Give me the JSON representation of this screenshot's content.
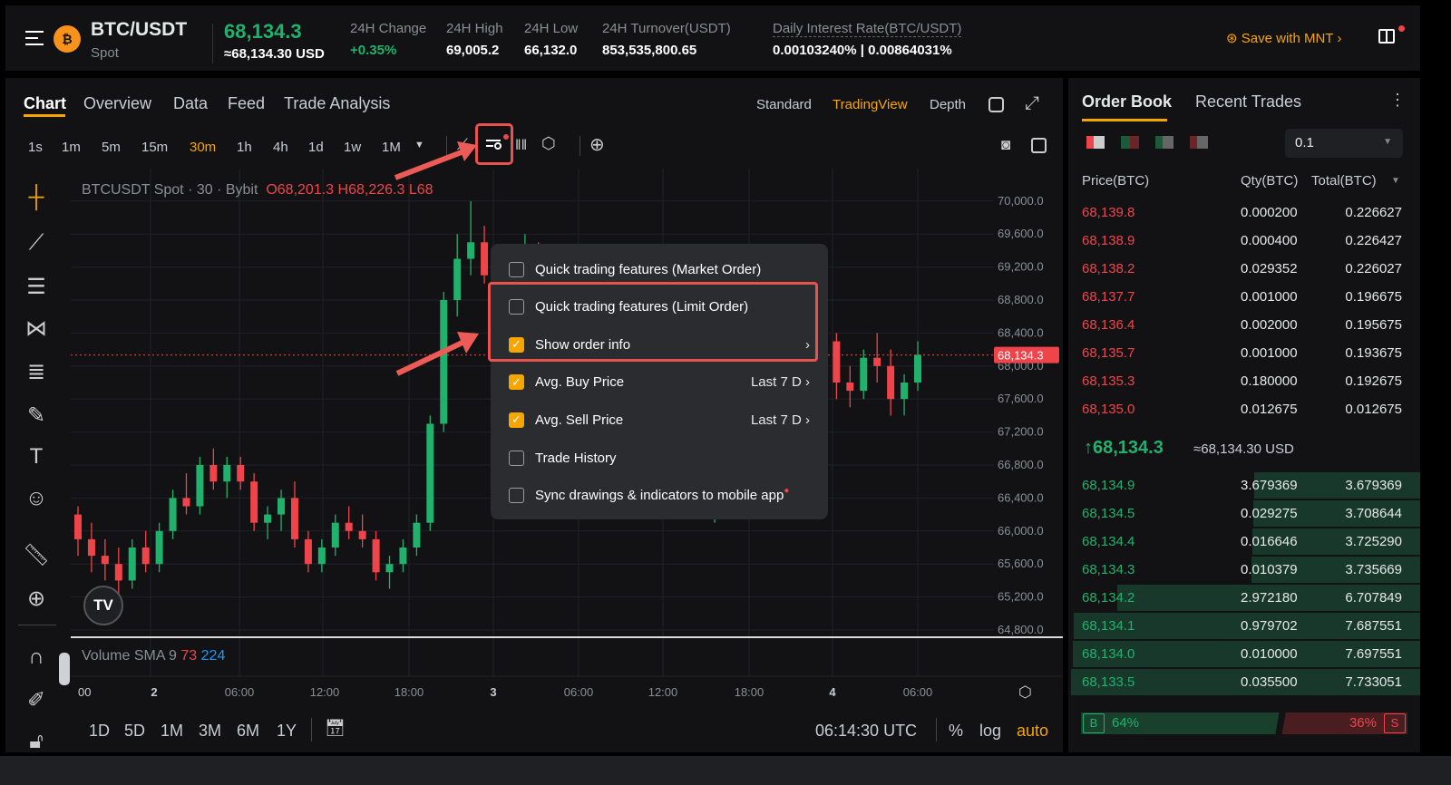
{
  "header": {
    "pair": "BTC/USDT",
    "market": "Spot",
    "last_price": "68,134.3",
    "usd_price": "≈68,134.30 USD",
    "stats": [
      {
        "label": "24H Change",
        "value": "+0.35%"
      },
      {
        "label": "24H High",
        "value": "69,005.2"
      },
      {
        "label": "24H Low",
        "value": "66,132.0"
      },
      {
        "label": "24H Turnover(USDT)",
        "value": "853,535,800.65"
      },
      {
        "label": "Daily Interest Rate(BTC/USDT)",
        "value": "0.00103240% | 0.00864031%"
      }
    ],
    "save_label": "Save with MNT"
  },
  "tabs": [
    "Chart",
    "Overview",
    "Data",
    "Feed",
    "Trade Analysis"
  ],
  "views": [
    "Standard",
    "TradingView",
    "Depth"
  ],
  "timeframes": [
    "1s",
    "1m",
    "5m",
    "15m",
    "30m",
    "1h",
    "4h",
    "1d",
    "1w",
    "1M"
  ],
  "active_timeframe": "30m",
  "legend": {
    "symbol": "BTCUSDT Spot · 30 · Bybit",
    "o": "O68,201.3",
    "h": "H68,226.3",
    "l": "L68"
  },
  "menu": [
    {
      "label": "Quick trading features (Market Order)",
      "checked": false,
      "right": ""
    },
    {
      "label": "Quick trading features (Limit Order)",
      "checked": false,
      "right": ""
    },
    {
      "label": "Show order info",
      "checked": true,
      "right": "›"
    },
    {
      "label": "Avg. Buy Price",
      "checked": true,
      "right": "Last 7 D ›"
    },
    {
      "label": "Avg. Sell Price",
      "checked": true,
      "right": "Last 7 D ›"
    },
    {
      "label": "Trade History",
      "checked": false,
      "right": ""
    },
    {
      "label": "Sync drawings & indicators to mobile app",
      "checked": false,
      "right": ""
    }
  ],
  "price_ticks": [
    "70,000.0",
    "69,600.0",
    "69,200.0",
    "68,800.0",
    "68,400.0",
    "68,000.0",
    "67,600.0",
    "67,200.0",
    "66,800.0",
    "66,400.0",
    "66,000.0",
    "65,600.0",
    "65,200.0",
    "64,800.0"
  ],
  "current_price_tag": "68,134.3",
  "time_ticks": [
    "00",
    "2",
    "06:00",
    "12:00",
    "18:00",
    "3",
    "06:00",
    "12:00",
    "18:00",
    "4",
    "06:00"
  ],
  "volume": {
    "label": "Volume SMA 9",
    "v1": "73",
    "v2": "224"
  },
  "ranges": [
    "1D",
    "5D",
    "1M",
    "3M",
    "6M",
    "1Y"
  ],
  "clock": "06:14:30 UTC",
  "scale_opts": [
    "%",
    "log",
    "auto"
  ],
  "chart_data": {
    "type": "candlestick",
    "ylim": [
      64800,
      70200
    ],
    "candles": [
      [
        66200,
        66300,
        65700,
        65900
      ],
      [
        65900,
        66100,
        65500,
        65700
      ],
      [
        65700,
        65900,
        65400,
        65600
      ],
      [
        65600,
        65800,
        65200,
        65400
      ],
      [
        65400,
        65900,
        65300,
        65800
      ],
      [
        65800,
        66000,
        65500,
        65600
      ],
      [
        65600,
        66100,
        65500,
        66000
      ],
      [
        66000,
        66500,
        65900,
        66400
      ],
      [
        66400,
        66700,
        66200,
        66300
      ],
      [
        66300,
        66900,
        66200,
        66800
      ],
      [
        66800,
        67000,
        66500,
        66600
      ],
      [
        66600,
        66900,
        66400,
        66800
      ],
      [
        66800,
        66900,
        66500,
        66600
      ],
      [
        66600,
        66700,
        66000,
        66100
      ],
      [
        66100,
        66300,
        65900,
        66200
      ],
      [
        66200,
        66500,
        66000,
        66400
      ],
      [
        66400,
        66600,
        65800,
        65900
      ],
      [
        65900,
        66000,
        65500,
        65600
      ],
      [
        65600,
        65900,
        65500,
        65800
      ],
      [
        65800,
        66200,
        65700,
        66100
      ],
      [
        66100,
        66300,
        65900,
        66000
      ],
      [
        66000,
        66200,
        65800,
        65900
      ],
      [
        65900,
        66000,
        65400,
        65500
      ],
      [
        65500,
        65700,
        65300,
        65600
      ],
      [
        65600,
        65900,
        65500,
        65800
      ],
      [
        65800,
        66200,
        65700,
        66100
      ],
      [
        66100,
        67400,
        66000,
        67300
      ],
      [
        67300,
        68900,
        67200,
        68800
      ],
      [
        68800,
        69600,
        68600,
        69300
      ],
      [
        69300,
        70000,
        69100,
        69500
      ],
      [
        69500,
        69700,
        69000,
        69100
      ],
      [
        69100,
        69300,
        68700,
        68900
      ],
      [
        68900,
        69400,
        68800,
        69300
      ],
      [
        69300,
        69600,
        69100,
        69400
      ],
      [
        69400,
        69500,
        68900,
        69000
      ],
      [
        69000,
        69300,
        68700,
        69200
      ],
      [
        69200,
        69400,
        68900,
        69100
      ],
      [
        69100,
        69200,
        68400,
        68500
      ],
      [
        68500,
        68700,
        67900,
        68000
      ],
      [
        68000,
        68200,
        67500,
        67600
      ],
      [
        67600,
        67800,
        67200,
        67300
      ],
      [
        67300,
        67500,
        66900,
        67000
      ],
      [
        67000,
        67200,
        66500,
        66700
      ],
      [
        66700,
        67100,
        66400,
        67000
      ],
      [
        67000,
        67200,
        66600,
        66800
      ],
      [
        66800,
        67100,
        66700,
        67000
      ],
      [
        67000,
        67200,
        66500,
        66600
      ],
      [
        66600,
        66900,
        66100,
        66800
      ],
      [
        66800,
        67200,
        66700,
        67100
      ],
      [
        67100,
        67500,
        67000,
        67400
      ],
      [
        67400,
        67900,
        67300,
        67800
      ],
      [
        67800,
        68300,
        67700,
        68200
      ],
      [
        68200,
        68500,
        68000,
        68300
      ],
      [
        68300,
        68500,
        67900,
        68000
      ],
      [
        68000,
        68500,
        67900,
        68400
      ],
      [
        68400,
        68900,
        68200,
        68300
      ],
      [
        68300,
        68400,
        67600,
        67800
      ],
      [
        67800,
        68000,
        67500,
        67700
      ],
      [
        67700,
        68200,
        67600,
        68100
      ],
      [
        68100,
        68400,
        67800,
        68000
      ],
      [
        68000,
        68200,
        67400,
        67600
      ],
      [
        67600,
        67900,
        67400,
        67800
      ],
      [
        67800,
        68300,
        67700,
        68134.3
      ]
    ]
  },
  "orderbook": {
    "tabs": [
      "Order Book",
      "Recent Trades"
    ],
    "precision": "0.1",
    "cols": [
      "Price(BTC)",
      "Qty(BTC)",
      "Total(BTC)"
    ],
    "asks": [
      [
        "68,139.8",
        "0.000200",
        "0.226627"
      ],
      [
        "68,138.9",
        "0.000400",
        "0.226427"
      ],
      [
        "68,138.2",
        "0.029352",
        "0.226027"
      ],
      [
        "68,137.7",
        "0.001000",
        "0.196675"
      ],
      [
        "68,136.4",
        "0.002000",
        "0.195675"
      ],
      [
        "68,135.7",
        "0.001000",
        "0.193675"
      ],
      [
        "68,135.3",
        "0.180000",
        "0.192675"
      ],
      [
        "68,135.0",
        "0.012675",
        "0.012675"
      ]
    ],
    "mid": "68,134.3",
    "mid_usd": "≈68,134.30 USD",
    "bids": [
      [
        "68,134.9",
        "3.679369",
        "3.679369"
      ],
      [
        "68,134.5",
        "0.029275",
        "3.708644"
      ],
      [
        "68,134.4",
        "0.016646",
        "3.725290"
      ],
      [
        "68,134.3",
        "0.010379",
        "3.735669"
      ],
      [
        "68,134.2",
        "2.972180",
        "6.707849"
      ],
      [
        "68,134.1",
        "0.979702",
        "7.687551"
      ],
      [
        "68,134.0",
        "0.010000",
        "7.697551"
      ],
      [
        "68,133.5",
        "0.035500",
        "7.733051"
      ]
    ],
    "buy_label": "B",
    "buy_pct": "64%",
    "sell_pct": "36%",
    "sell_label": "S"
  },
  "colors": {
    "up": "#20b26c",
    "down": "#ef454a",
    "accent": "#f7a600",
    "highlight": "#e8524f"
  }
}
